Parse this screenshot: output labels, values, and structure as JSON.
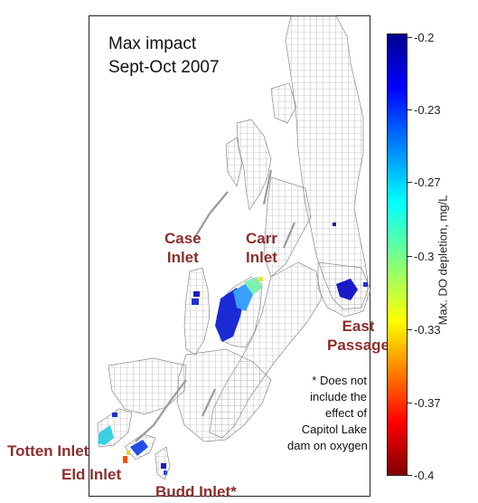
{
  "title": {
    "line1": "Max impact",
    "line2": "Sept-Oct 2007"
  },
  "places": {
    "case_inlet": "Case\nInlet",
    "carr_inlet": "Carr\nInlet",
    "east_passage": "East\nPassage",
    "totten_inlet": "Totten Inlet",
    "eld_inlet": "Eld Inlet",
    "budd_inlet": "Budd Inlet*"
  },
  "note": {
    "line1": "* Does not",
    "line2": "include the",
    "line3": "effect of",
    "line4": "Capitol Lake",
    "line5": "dam on oxygen"
  },
  "colorbar": {
    "title": "Max. DO depletion, mg/L",
    "ticks": [
      "-0.2",
      "-0.23",
      "-0.27",
      "-0.3",
      "-0.33",
      "-0.37",
      "-0.4"
    ],
    "range": [
      -0.4,
      -0.2
    ],
    "colormap": "jet",
    "colors": [
      "#00008f",
      "#0000ff",
      "#00ffff",
      "#ffff00",
      "#ff0000",
      "#800000"
    ]
  },
  "colors": {
    "label": "#8b2e2e",
    "mesh": "#9a9a9a"
  }
}
